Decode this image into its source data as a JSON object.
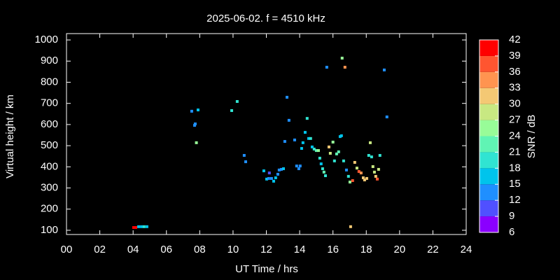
{
  "chart_data": {
    "type": "scatter",
    "title": "2025-06-02. f = 4510 kHz",
    "x_label": "UT Time / hrs",
    "y_label": "Virtual height / km",
    "xlim": [
      0,
      24
    ],
    "xticks": [
      {
        "value": 0,
        "label": "00"
      },
      {
        "value": 2,
        "label": "02"
      },
      {
        "value": 4,
        "label": "04"
      },
      {
        "value": 6,
        "label": "06"
      },
      {
        "value": 8,
        "label": "08"
      },
      {
        "value": 10,
        "label": "10"
      },
      {
        "value": 12,
        "label": "12"
      },
      {
        "value": 14,
        "label": "14"
      },
      {
        "value": 16,
        "label": "16"
      },
      {
        "value": 18,
        "label": "18"
      },
      {
        "value": 20,
        "label": "20"
      },
      {
        "value": 22,
        "label": "22"
      },
      {
        "value": 24,
        "label": "24"
      }
    ],
    "ylim": [
      80,
      1030
    ],
    "yticks": [
      100,
      200,
      300,
      400,
      500,
      600,
      700,
      800,
      900,
      1000
    ],
    "colorbar": {
      "label": "SNR / dB",
      "lim": [
        6,
        42
      ],
      "ticks": [
        6,
        9,
        12,
        15,
        18,
        21,
        24,
        27,
        30,
        33,
        36,
        39,
        42
      ],
      "colors": [
        "#8a00ff",
        "#5050ff",
        "#1f8fff",
        "#00c4ec",
        "#30e4d2",
        "#60f4b4",
        "#98fc98",
        "#c8e882",
        "#f4c874",
        "#ff9450",
        "#ff5530",
        "#ff0000"
      ]
    },
    "series": [
      {
        "name": "SNR",
        "x": [
          4.03,
          4.16,
          4.33,
          4.5,
          4.66,
          4.83,
          7.52,
          7.69,
          7.73,
          7.9,
          7.8,
          9.92,
          10.25,
          10.67,
          10.76,
          11.85,
          12.02,
          12.14,
          12.18,
          12.31,
          12.44,
          12.56,
          12.69,
          12.77,
          12.9,
          13.03,
          13.11,
          13.24,
          13.36,
          13.7,
          13.82,
          13.95,
          14.03,
          14.12,
          14.2,
          14.33,
          14.45,
          14.54,
          14.66,
          14.75,
          14.87,
          15.0,
          15.13,
          15.21,
          15.29,
          15.38,
          15.46,
          15.55,
          15.63,
          15.76,
          15.84,
          16.0,
          16.09,
          16.22,
          16.34,
          16.43,
          16.51,
          16.55,
          16.64,
          16.72,
          16.81,
          16.93,
          17.02,
          17.06,
          17.18,
          17.31,
          17.44,
          17.56,
          17.69,
          17.82,
          17.9,
          18.03,
          18.15,
          18.24,
          18.32,
          18.4,
          18.49,
          18.57,
          18.66,
          18.74,
          18.82,
          19.08,
          19.24
        ],
        "values": [
          113,
          113,
          117,
          117,
          117,
          117,
          663,
          596,
          603,
          669,
          514,
          666,
          709,
          454,
          424,
          381,
          342,
          345,
          371,
          345,
          332,
          348,
          365,
          385,
          388,
          391,
          520,
          729,
          620,
          527,
          404,
          391,
          404,
          487,
          514,
          563,
          629,
          534,
          534,
          494,
          484,
          477,
          477,
          441,
          414,
          391,
          375,
          358,
          871,
          494,
          464,
          517,
          428,
          461,
          471,
          543,
          547,
          914,
          428,
          871,
          385,
          355,
          328,
          117,
          335,
          421,
          394,
          378,
          371,
          348,
          338,
          345,
          454,
          514,
          447,
          401,
          375,
          355,
          342,
          388,
          454,
          858,
          636
        ],
        "sizes": [
          40,
          40,
          17,
          17,
          18,
          17,
          13,
          12,
          12,
          17,
          26,
          18,
          18,
          13,
          12,
          17,
          15,
          14,
          10,
          14,
          16,
          15,
          13,
          14,
          13,
          15,
          13,
          12,
          12,
          14,
          13,
          12,
          12,
          17,
          15,
          16,
          18,
          17,
          18,
          17,
          19,
          23,
          24,
          20,
          17,
          19,
          21,
          20,
          13,
          31,
          29,
          25,
          18,
          22,
          23,
          17,
          17,
          26,
          20,
          33,
          13,
          18,
          26,
          32,
          38,
          30,
          27,
          36,
          33,
          30,
          32,
          30,
          18,
          27,
          18,
          28,
          29,
          30,
          37,
          28,
          19,
          12,
          13
        ]
      }
    ]
  }
}
